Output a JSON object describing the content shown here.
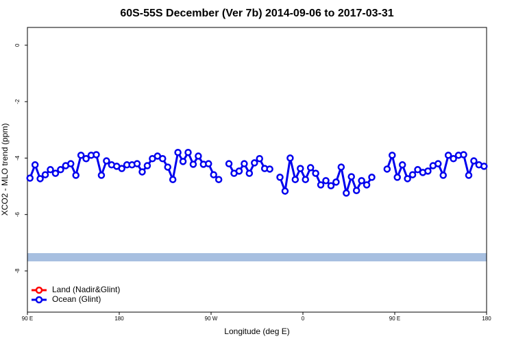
{
  "chart_data": {
    "type": "line",
    "title": "60S-55S December (Ver 7b)   2014-09-06 to 2017-03-31",
    "xlabel": "Longitude (deg E)",
    "ylabel": "XCO2 - MLO trend (ppm)",
    "x": [
      92.5,
      97.5,
      102.5,
      107.5,
      112.5,
      117.5,
      122.5,
      127.5,
      132.5,
      137.5,
      142.5,
      147.5,
      152.5,
      157.5,
      162.5,
      167.5,
      172.5,
      177.5,
      182.5,
      187.5,
      192.5,
      197.5,
      202.5,
      207.5,
      212.5,
      217.5,
      222.5,
      227.5,
      232.5,
      237.5,
      242.5,
      247.5,
      252.5,
      257.5,
      262.5,
      267.5,
      272.5,
      277.5,
      282.5,
      287.5,
      292.5,
      297.5,
      302.5,
      307.5,
      312.5,
      317.5,
      322.5,
      327.5,
      332.5,
      337.5,
      342.5,
      347.5,
      352.5,
      357.5,
      362.5,
      367.5,
      372.5,
      377.5,
      382.5,
      387.5,
      392.5,
      397.5,
      402.5,
      407.5,
      412.5,
      417.5,
      422.5,
      427.5,
      432.5,
      437.5,
      442.5,
      447.5,
      452.5,
      457.5,
      462.5,
      467.5,
      472.5,
      477.5,
      482.5,
      487.5,
      492.5,
      497.5,
      502.5,
      507.5,
      512.5,
      517.5,
      522.5,
      527.5,
      532.5,
      537.5
    ],
    "series": [
      {
        "name": "Land (Nadir&Glint)",
        "color": "#ff0000",
        "values": [
          null,
          null,
          null,
          null,
          null,
          null,
          null,
          null,
          null,
          null,
          null,
          null,
          null,
          null,
          null,
          null,
          null,
          null,
          null,
          null,
          null,
          null,
          null,
          null,
          null,
          null,
          null,
          null,
          null,
          null,
          null,
          null,
          null,
          null,
          null,
          null,
          null,
          null,
          null,
          null,
          null,
          null,
          null,
          null,
          null,
          null,
          null,
          null,
          null,
          null,
          null,
          null,
          null,
          null,
          null,
          null,
          null,
          null,
          null,
          null,
          null,
          null,
          null,
          null,
          null,
          null,
          null,
          null,
          null,
          null,
          null,
          null,
          null,
          null,
          null,
          null,
          null,
          null,
          null,
          null,
          null,
          null,
          null,
          null,
          null,
          null,
          null,
          null,
          null,
          null
        ]
      },
      {
        "name": "Ocean (Glint)",
        "color": "#0000ee",
        "values": [
          -4.71,
          -4.24,
          -4.73,
          -4.59,
          -4.41,
          -4.54,
          -4.41,
          -4.27,
          -4.2,
          -4.61,
          -3.9,
          -4.02,
          -3.9,
          -3.88,
          -4.61,
          -4.1,
          -4.24,
          -4.29,
          -4.37,
          -4.24,
          -4.24,
          -4.2,
          -4.49,
          -4.27,
          -4.02,
          -3.93,
          -4.02,
          -4.32,
          -4.76,
          -3.8,
          -4.12,
          -3.8,
          -4.22,
          -3.93,
          -4.22,
          -4.2,
          -4.59,
          -4.76,
          null,
          -4.2,
          -4.54,
          -4.46,
          -4.2,
          -4.54,
          -4.17,
          -4.02,
          -4.37,
          -4.39,
          null,
          -4.68,
          -5.17,
          -4.0,
          -4.76,
          -4.37,
          -4.76,
          -4.34,
          -4.54,
          -4.95,
          -4.8,
          -4.98,
          -4.85,
          -4.32,
          -5.24,
          -4.66,
          -5.15,
          -4.8,
          -4.95,
          -4.68,
          null,
          null,
          -4.39,
          -3.9,
          -4.68,
          -4.24,
          -4.73,
          -4.59,
          -4.41,
          -4.51,
          -4.46,
          -4.27,
          -4.2,
          -4.61,
          -3.9,
          -4.02,
          -3.9,
          -3.88,
          -4.61,
          -4.1,
          -4.24,
          -4.29
        ]
      }
    ],
    "xlim": [
      90,
      540
    ],
    "xticks": [
      {
        "value": 90,
        "label": "90 E"
      },
      180,
      {
        "value": 270,
        "label": "90 W"
      },
      {
        "value": 360,
        "label": "0"
      },
      {
        "value": 450,
        "label": "90 E"
      },
      {
        "value": 540,
        "label": "180"
      }
    ],
    "ylim": [
      -9.46,
      0.63
    ],
    "yticks": [
      0,
      -2,
      -4,
      -6,
      -8
    ],
    "grid": false,
    "legend": "bottom-left"
  }
}
